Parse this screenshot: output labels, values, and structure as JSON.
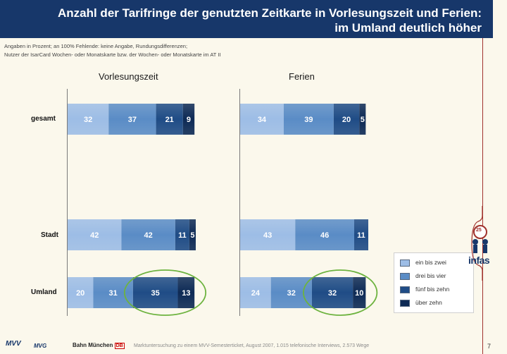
{
  "title_line1": "Anzahl der Tarifringe der genutzten Zeitkarte in Vorlesungszeit und Ferien:",
  "title_line2": "im Umland deutlich höher",
  "note_line1": "Angaben in Prozent; an 100% Fehlende: keine Angabe, Rundungsdifferenzen;",
  "note_line2": "Nutzer der IsarCard Wochen- oder Monatskarte bzw. der Wochen- oder Monatskarte im AT II",
  "footer_text": "Marktuntersuchung zu einem MVV-Semesterticket, August 2007, 1.015 telefonische Interviews, 2.573 Wege",
  "page_number": "7",
  "footer_logos": {
    "mvv": "MVV",
    "mvg": "MVG",
    "bahn": "Bahn München",
    "db": "DB"
  },
  "logo_text": "infas",
  "logo_badge": "25",
  "colors": {
    "header_bg": "#17376a",
    "accent_red": "#a1322d",
    "circle_green": "#6db33f",
    "series": [
      "#9dbde6",
      "#5a8cc6",
      "#1f4c86",
      "#0d2a55"
    ]
  },
  "chart_data": {
    "type": "bar",
    "orientation": "horizontal",
    "stacked": true,
    "categories": [
      "gesamt",
      "Stadt",
      "Umland"
    ],
    "legend": [
      "ein bis zwei",
      "drei bis vier",
      "fünf bis zehn",
      "über zehn"
    ],
    "legend_position": "bottom-right",
    "panels": [
      {
        "title": "Vorlesungszeit",
        "series": [
          {
            "name": "ein bis zwei",
            "values": [
              32,
              42,
              20
            ]
          },
          {
            "name": "drei bis vier",
            "values": [
              37,
              42,
              31
            ]
          },
          {
            "name": "fünf bis zehn",
            "values": [
              21,
              11,
              35
            ]
          },
          {
            "name": "über zehn",
            "values": [
              9,
              5,
              13
            ]
          }
        ],
        "highlighted": [
          {
            "category": "Umland",
            "series": [
              "fünf bis zehn",
              "über zehn"
            ]
          }
        ]
      },
      {
        "title": "Ferien",
        "series": [
          {
            "name": "ein bis zwei",
            "values": [
              34,
              43,
              24
            ]
          },
          {
            "name": "drei bis vier",
            "values": [
              39,
              46,
              32
            ]
          },
          {
            "name": "fünf bis zehn",
            "values": [
              20,
              11,
              32
            ]
          },
          {
            "name": "über zehn",
            "values": [
              5,
              null,
              10
            ]
          }
        ],
        "highlighted": [
          {
            "category": "Umland",
            "series": [
              "fünf bis zehn",
              "über zehn"
            ]
          }
        ]
      }
    ],
    "xlim": [
      0,
      100
    ],
    "grid": false
  }
}
